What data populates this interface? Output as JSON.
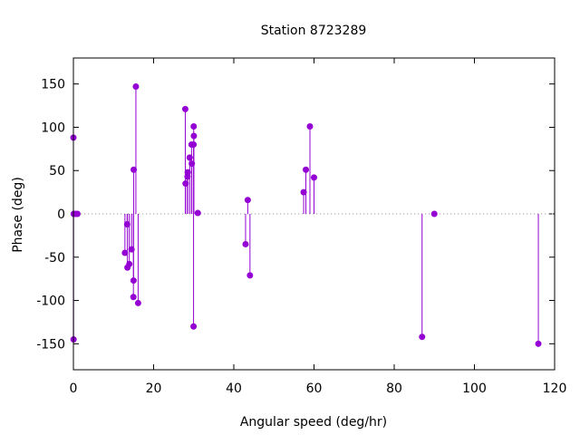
{
  "colors": {
    "series": "#9400d3",
    "axis": "#000000",
    "zero_line": "#9b9b9b",
    "background": "#ffffff"
  },
  "chart_data": {
    "type": "scatter",
    "style": "impulses with points",
    "title": "Station 8723289",
    "xlabel": "Angular speed (deg/hr)",
    "ylabel": "Phase (deg)",
    "xlim": [
      0,
      120
    ],
    "ylim": [
      -180,
      180
    ],
    "xticks": [
      0,
      20,
      40,
      60,
      80,
      100,
      120
    ],
    "yticks": [
      -150,
      -100,
      -50,
      0,
      50,
      100,
      150
    ],
    "grid": false,
    "legend": "none",
    "points": [
      {
        "x": 0.0,
        "y": 88
      },
      {
        "x": 0.04,
        "y": -145
      },
      {
        "x": 0.08,
        "y": 0
      },
      {
        "x": 0.5,
        "y": 0
      },
      {
        "x": 1.0,
        "y": 0
      },
      {
        "x": 12.85,
        "y": -45
      },
      {
        "x": 13.4,
        "y": -12
      },
      {
        "x": 13.47,
        "y": -62
      },
      {
        "x": 13.94,
        "y": -58
      },
      {
        "x": 14.5,
        "y": -41
      },
      {
        "x": 14.96,
        "y": -96
      },
      {
        "x": 15.0,
        "y": -77
      },
      {
        "x": 15.04,
        "y": 51
      },
      {
        "x": 15.58,
        "y": 147
      },
      {
        "x": 16.14,
        "y": -103
      },
      {
        "x": 27.9,
        "y": 121
      },
      {
        "x": 27.97,
        "y": 35
      },
      {
        "x": 28.44,
        "y": 43
      },
      {
        "x": 28.51,
        "y": 48
      },
      {
        "x": 29.0,
        "y": 65
      },
      {
        "x": 29.46,
        "y": 80
      },
      {
        "x": 29.53,
        "y": 58
      },
      {
        "x": 29.96,
        "y": 80
      },
      {
        "x": 30.0,
        "y": 101
      },
      {
        "x": 30.04,
        "y": 90
      },
      {
        "x": 29.96,
        "y": -130
      },
      {
        "x": 31.02,
        "y": 1
      },
      {
        "x": 42.93,
        "y": -35
      },
      {
        "x": 43.48,
        "y": 16
      },
      {
        "x": 44.03,
        "y": -71
      },
      {
        "x": 57.42,
        "y": 25
      },
      {
        "x": 57.97,
        "y": 51
      },
      {
        "x": 58.98,
        "y": 101
      },
      {
        "x": 60.0,
        "y": 42
      },
      {
        "x": 86.95,
        "y": -142
      },
      {
        "x": 90.0,
        "y": 0
      },
      {
        "x": 115.94,
        "y": -150
      }
    ]
  }
}
